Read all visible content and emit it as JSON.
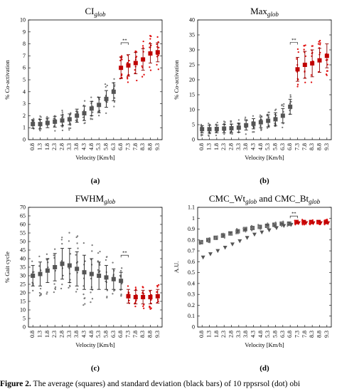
{
  "caption": {
    "label": "Figure 2.",
    "text": "The average (squares) and standard deviation (black bars) of 10 rppsrsol (dot) obi"
  },
  "chart_data": [
    {
      "panel": "(a)",
      "type": "scatter",
      "title": "CI",
      "title_sub": "glob",
      "xlabel": "Velocity [Km/h]",
      "ylabel": "% Co-activation",
      "ylim": [
        0,
        10
      ],
      "yticks": [
        0,
        1,
        2,
        3,
        4,
        5,
        6,
        7,
        8,
        9,
        10
      ],
      "categories": [
        "0.8",
        "1.3",
        "1.8",
        "2.3",
        "2.8",
        "3.3",
        "3.8",
        "4.3",
        "4.8",
        "5.3",
        "5.8",
        "6.3",
        "6.8",
        "7.3",
        "7.8",
        "8.3",
        "8.8",
        "9.3"
      ],
      "means": [
        1.3,
        1.3,
        1.4,
        1.5,
        1.6,
        1.7,
        2.0,
        2.2,
        2.6,
        2.9,
        3.4,
        4.0,
        6.0,
        6.2,
        6.4,
        6.7,
        7.2,
        7.3
      ],
      "sd": [
        0.35,
        0.4,
        0.4,
        0.45,
        0.45,
        0.45,
        0.55,
        0.6,
        0.6,
        0.65,
        0.7,
        0.75,
        0.9,
        0.9,
        0.9,
        0.9,
        0.8,
        0.8
      ],
      "spread": [
        0.6,
        0.7,
        0.8,
        0.8,
        0.85,
        0.9,
        1.0,
        1.1,
        1.1,
        1.2,
        1.3,
        1.3,
        1.5,
        1.6,
        1.6,
        1.6,
        1.5,
        1.5
      ],
      "red_from_index": 12,
      "significance": {
        "label": "**",
        "between": [
          "6.8",
          "7.3"
        ],
        "y": 8.1
      }
    },
    {
      "panel": "(b)",
      "type": "scatter",
      "title": "Max",
      "title_sub": "glob",
      "xlabel": "Velocity [Km/h]",
      "ylabel": "% Co-activation",
      "ylim": [
        0,
        40
      ],
      "yticks": [
        0,
        5,
        10,
        15,
        20,
        25,
        30,
        35,
        40
      ],
      "categories": [
        "0.8",
        "1.3",
        "1.8",
        "2.3",
        "2.8",
        "3.3",
        "3.8",
        "4.3",
        "4.8",
        "5.3",
        "5.8",
        "6.3",
        "6.8",
        "7.3",
        "7.8",
        "8.3",
        "8.8",
        "9.3"
      ],
      "means": [
        3.5,
        3.5,
        3.6,
        3.7,
        3.8,
        4.0,
        4.8,
        5.3,
        5.8,
        6.3,
        6.8,
        8.0,
        11.0,
        23.5,
        25.0,
        25.5,
        26.5,
        28.0
      ],
      "sd": [
        1.2,
        1.3,
        1.3,
        1.4,
        1.4,
        1.5,
        1.6,
        1.7,
        1.8,
        2.0,
        2.2,
        2.4,
        2.5,
        4.0,
        4.5,
        4.5,
        4.0,
        4.0
      ],
      "spread": [
        2.2,
        2.4,
        2.5,
        2.6,
        2.6,
        2.8,
        3.0,
        3.2,
        3.4,
        3.6,
        3.8,
        4.0,
        4.2,
        7.0,
        7.5,
        7.5,
        7.0,
        6.5
      ],
      "red_from_index": 13,
      "significance": {
        "label": "**",
        "between": [
          "6.8",
          "7.3"
        ],
        "y": 32.5
      }
    },
    {
      "panel": "(c)",
      "type": "scatter",
      "title": "FWHM",
      "title_sub": "glob",
      "xlabel": "Velocity [Km/h]",
      "ylabel": "% Gait cycle",
      "ylim": [
        0,
        70
      ],
      "yticks": [
        0,
        5,
        10,
        15,
        20,
        25,
        30,
        35,
        40,
        45,
        50,
        55,
        60,
        65,
        70
      ],
      "categories": [
        "0.8",
        "1.3",
        "1.8",
        "2.3",
        "2.8",
        "3.3",
        "3.8",
        "4.3",
        "4.8",
        "5.3",
        "5.8",
        "6.3",
        "6.8",
        "7.3",
        "7.8",
        "8.3",
        "8.8",
        "9.3"
      ],
      "means": [
        30,
        31,
        33,
        35,
        37,
        36,
        34,
        32,
        31,
        30,
        29,
        28,
        27,
        18,
        17.5,
        17.5,
        17.5,
        18
      ],
      "sd": [
        6,
        7,
        7,
        8,
        9,
        10,
        10,
        10,
        9,
        8,
        7,
        6,
        5,
        4,
        4,
        4,
        4,
        4
      ],
      "spread": [
        11,
        13,
        14,
        15,
        17,
        20,
        22,
        20,
        17,
        15,
        13,
        11,
        9,
        7,
        7,
        7,
        7,
        7
      ],
      "red_from_index": 13,
      "significance": {
        "label": "**",
        "between": [
          "6.8",
          "7.3"
        ],
        "y": 42
      }
    },
    {
      "panel": "(d)",
      "type": "scatter",
      "title": "CMC_Wt",
      "title_sub": "glob",
      "title_mid": " and CMC_Bt",
      "title_sub2": "glob",
      "xlabel": "Velocity [Km/h]",
      "ylabel": "A.U.",
      "ylim": [
        0,
        1.1
      ],
      "yticks": [
        0,
        0.1,
        0.2,
        0.3,
        0.4,
        0.5,
        0.6,
        0.7,
        0.8,
        0.9,
        1,
        1.1
      ],
      "categories": [
        "0.8",
        "1.3",
        "1.8",
        "2.3",
        "2.8",
        "3.3",
        "3.8",
        "4.3",
        "4.8",
        "5.3",
        "5.8",
        "6.3",
        "6.8",
        "7.3",
        "7.8",
        "8.3",
        "8.8",
        "9.3"
      ],
      "series": [
        {
          "name": "CMC_Wt",
          "marker": "square",
          "values": [
            0.78,
            0.8,
            0.82,
            0.84,
            0.86,
            0.88,
            0.9,
            0.91,
            0.92,
            0.93,
            0.94,
            0.95,
            0.95,
            0.965,
            0.965,
            0.965,
            0.965,
            0.965
          ]
        },
        {
          "name": "CMC_Bt",
          "marker": "triangle",
          "values": [
            0.64,
            0.67,
            0.7,
            0.73,
            0.76,
            0.79,
            0.82,
            0.85,
            0.87,
            0.89,
            0.91,
            0.93,
            0.94,
            0.955,
            0.955,
            0.955,
            0.955,
            0.955
          ]
        }
      ],
      "red_from_index": 13,
      "significance": {
        "label": "**",
        "between": [
          "6.8",
          "7.3"
        ],
        "y": 1.02
      }
    }
  ]
}
